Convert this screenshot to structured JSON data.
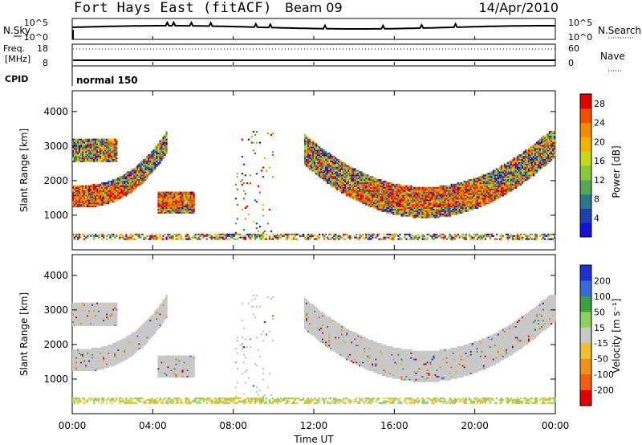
{
  "header": {
    "title": "Fort Hays East (fitACF)",
    "beam": "Beam 09",
    "date": "14/Apr/2010"
  },
  "summary_panel": {
    "nsky_label": "N.Sky",
    "nsearch_label": "N.Search",
    "noise_ticks": [
      "10^5",
      "10^0"
    ],
    "freq_label": "Freq.",
    "freq_unit": "[MHz]",
    "freq_ticks": [
      "18",
      "8"
    ],
    "nave_label": "Nave",
    "nave_ticks": [
      "60",
      "0"
    ],
    "cpid_label": "CPID",
    "cpid_value": "normal 150"
  },
  "chart_data": [
    {
      "type": "heatmap",
      "name": "power",
      "xlabel": "Time UT",
      "ylabel": "Slant Range [km]",
      "xlim": [
        "00:00",
        "00:00"
      ],
      "ylim": [
        0,
        4600
      ],
      "x_tick_labels": [
        "00:00",
        "04:00",
        "08:00",
        "12:00",
        "16:00",
        "20:00",
        "00:00"
      ],
      "y_ticks": [
        1000,
        2000,
        3000,
        4000
      ],
      "colorbar": {
        "label": "Power [dB]",
        "ticks": [
          4,
          8,
          12,
          16,
          20,
          24,
          28
        ],
        "range": [
          0,
          30
        ],
        "colors": [
          "#1410d8",
          "#1f3fae",
          "#2a7a8a",
          "#55a859",
          "#8ac83a",
          "#c8d818",
          "#f2b200",
          "#f58a00",
          "#ef5000",
          "#e00000"
        ]
      },
      "features": [
        {
          "start": "00:00",
          "end": "04:40",
          "range_km": [
            1300,
            3300
          ],
          "description": "arc"
        },
        {
          "start": "04:20",
          "end": "06:00",
          "range_km": [
            1000,
            1700
          ]
        },
        {
          "start": "11:30",
          "end": "23:59",
          "range_km": [
            800,
            3300
          ],
          "description": "arc"
        },
        {
          "start": "00:00",
          "end": "23:59",
          "range_km": [
            250,
            500
          ],
          "description": "ground scatter band"
        }
      ]
    },
    {
      "type": "heatmap",
      "name": "velocity",
      "xlabel": "Time UT",
      "ylabel": "Slant Range [km]",
      "xlim": [
        "00:00",
        "00:00"
      ],
      "ylim": [
        0,
        4600
      ],
      "x_tick_labels": [
        "00:00",
        "04:00",
        "08:00",
        "12:00",
        "16:00",
        "20:00",
        "00:00"
      ],
      "y_ticks": [
        1000,
        2000,
        3000,
        4000
      ],
      "colorbar": {
        "label": "Velocity [m s⁻¹]",
        "ticks": [
          "200",
          "100",
          "50",
          "15",
          "-15",
          "-50",
          "-100",
          "-200"
        ],
        "colors": [
          "#1f2fd0",
          "#3a6ad8",
          "#3aa040",
          "#8cd060",
          "#c8c8c8",
          "#f0c030",
          "#f09018",
          "#f06010",
          "#e00000"
        ]
      }
    }
  ]
}
